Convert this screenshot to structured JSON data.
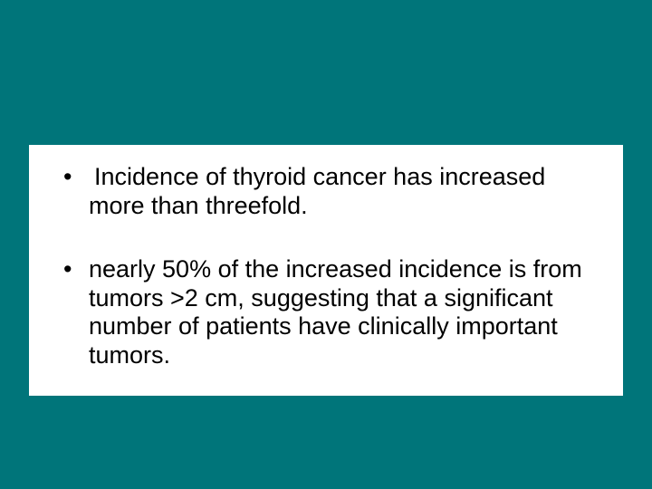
{
  "slide": {
    "background_color": "#00757a",
    "box_background": "#ffffff",
    "text_color": "#000000",
    "font_size_pt": 27,
    "bullets": [
      {
        "text": " Incidence of thyroid cancer has increased more than threefold."
      },
      {
        "text": "nearly 50% of the increased incidence is from tumors >2 cm, suggesting that a significant number of patients have clinically important tumors."
      }
    ]
  }
}
